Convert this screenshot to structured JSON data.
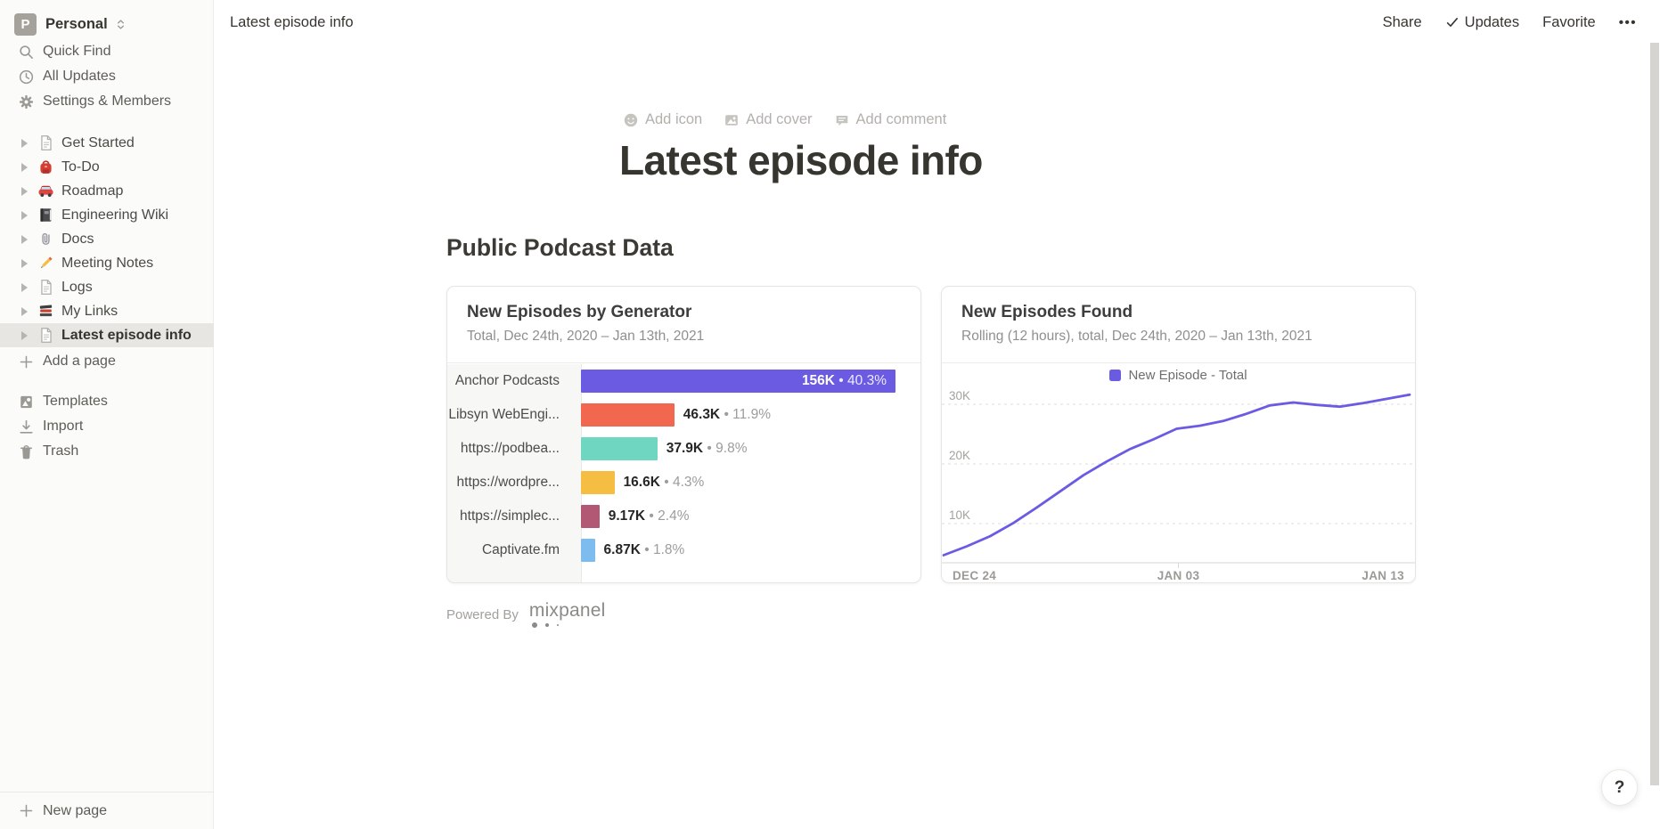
{
  "workspace": {
    "name": "Personal",
    "avatar_letter": "P"
  },
  "sidebar": {
    "menu": [
      {
        "label": "Quick Find",
        "icon": "search-icon"
      },
      {
        "label": "All Updates",
        "icon": "clock-icon"
      },
      {
        "label": "Settings & Members",
        "icon": "gear-icon"
      }
    ],
    "pages": [
      {
        "label": "Get Started",
        "icon": "document-icon",
        "selected": false
      },
      {
        "label": "To-Do",
        "icon": "backpack-icon",
        "selected": false
      },
      {
        "label": "Roadmap",
        "icon": "car-icon",
        "selected": false
      },
      {
        "label": "Engineering Wiki",
        "icon": "notebook-icon",
        "selected": false
      },
      {
        "label": "Docs",
        "icon": "paperclip-icon",
        "selected": false
      },
      {
        "label": "Meeting Notes",
        "icon": "pencil-icon",
        "selected": false
      },
      {
        "label": "Logs",
        "icon": "document-icon",
        "selected": false
      },
      {
        "label": "My Links",
        "icon": "books-icon",
        "selected": false
      },
      {
        "label": "Latest episode info",
        "icon": "document-icon",
        "selected": true
      }
    ],
    "add_page_label": "Add a page",
    "tools": [
      {
        "label": "Templates",
        "icon": "templates-icon"
      },
      {
        "label": "Import",
        "icon": "import-icon"
      },
      {
        "label": "Trash",
        "icon": "trash-icon"
      }
    ],
    "new_page_label": "New page"
  },
  "topbar": {
    "breadcrumb": "Latest episode info",
    "actions": {
      "share": "Share",
      "updates": "Updates",
      "favorite": "Favorite",
      "more": "•••"
    }
  },
  "page": {
    "controls": [
      {
        "label": "Add icon",
        "icon": "smiley-icon"
      },
      {
        "label": "Add cover",
        "icon": "image-icon"
      },
      {
        "label": "Add comment",
        "icon": "comment-icon"
      }
    ],
    "title": "Latest episode info",
    "section_heading": "Public Podcast Data",
    "powered_by": "Powered By",
    "mixpanel_wordmark": "mixpanel",
    "help_label": "?"
  },
  "chart_data": [
    {
      "type": "bar",
      "title": "New Episodes by Generator",
      "subtitle": "Total, Dec 24th, 2020 – Jan 13th, 2021",
      "categories": [
        "Anchor Podcasts",
        "Libsyn WebEngi...",
        "https://podbea...",
        "https://wordpre...",
        "https://simplec...",
        "Captivate.fm"
      ],
      "values": [
        156000,
        46300,
        37900,
        16600,
        9170,
        6870
      ],
      "value_labels": [
        "156K",
        "46.3K",
        "37.9K",
        "16.6K",
        "9.17K",
        "6.87K"
      ],
      "pct_labels": [
        "40.3%",
        "11.9%",
        "9.8%",
        "4.3%",
        "2.4%",
        "1.8%"
      ],
      "bar_colors": [
        "#6A5BE2",
        "#F2674F",
        "#6FD6C1",
        "#F5BD41",
        "#B25874",
        "#7DBCEF"
      ],
      "xlim": [
        0,
        156000
      ],
      "orientation": "horizontal"
    },
    {
      "type": "line",
      "title": "New Episodes Found",
      "subtitle": "Rolling (12 hours), total, Dec 24th, 2020 – Jan 13th, 2021",
      "legend": [
        {
          "label": "New Episode - Total",
          "color": "#6A5BE2"
        }
      ],
      "line_color": "#6A5BE2",
      "grid": "dashed-horizontal",
      "x": [
        "Dec 24",
        "Dec 25",
        "Dec 26",
        "Dec 27",
        "Dec 28",
        "Dec 29",
        "Dec 30",
        "Dec 31",
        "Jan 01",
        "Jan 02",
        "Jan 03",
        "Jan 04",
        "Jan 05",
        "Jan 06",
        "Jan 07",
        "Jan 08",
        "Jan 09",
        "Jan 10",
        "Jan 11",
        "Jan 12",
        "Jan 13"
      ],
      "values": [
        4700,
        6200,
        7900,
        10100,
        12700,
        15400,
        18100,
        20400,
        22500,
        24100,
        25900,
        26400,
        27200,
        28400,
        29800,
        30300,
        29900,
        29600,
        30200,
        30900,
        31600
      ],
      "y_ticks": [
        {
          "label": "10K",
          "value": 10000
        },
        {
          "label": "20K",
          "value": 20000
        },
        {
          "label": "30K",
          "value": 30000
        }
      ],
      "x_tick_labels": [
        "DEC 24",
        "JAN 03",
        "JAN 13"
      ],
      "ylim": [
        0,
        35000
      ]
    }
  ]
}
